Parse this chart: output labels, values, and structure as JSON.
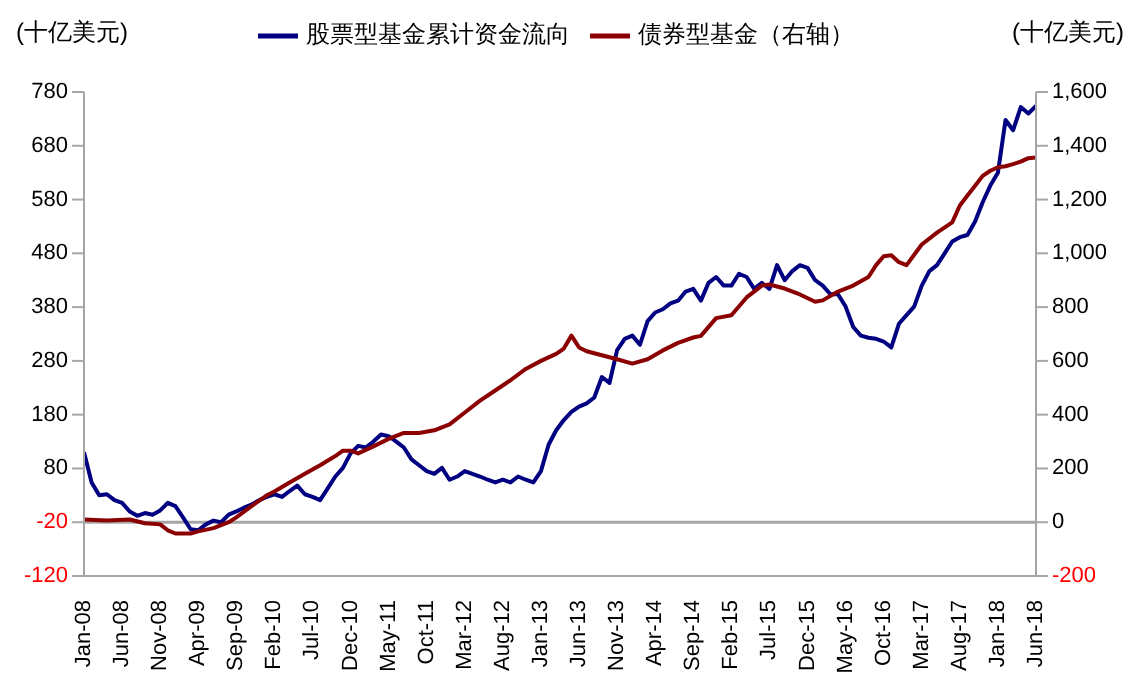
{
  "chart_data": {
    "type": "line",
    "ylabel": "(十亿美元)",
    "y2label": "(十亿美元)",
    "xlim": [
      "2008-01",
      "2018-06"
    ],
    "xticks": [
      {
        "value": "2008-01",
        "label": "Jan-08"
      },
      {
        "value": "2008-06",
        "label": "Jun-08"
      },
      {
        "value": "2008-11",
        "label": "Nov-08"
      },
      {
        "value": "2009-04",
        "label": "Apr-09"
      },
      {
        "value": "2009-09",
        "label": "Sep-09"
      },
      {
        "value": "2010-02",
        "label": "Feb-10"
      },
      {
        "value": "2010-07",
        "label": "Jul-10"
      },
      {
        "value": "2010-12",
        "label": "Dec-10"
      },
      {
        "value": "2011-05",
        "label": "May-11"
      },
      {
        "value": "2011-10",
        "label": "Oct-11"
      },
      {
        "value": "2012-03",
        "label": "Mar-12"
      },
      {
        "value": "2012-08",
        "label": "Aug-12"
      },
      {
        "value": "2013-01",
        "label": "Jan-13"
      },
      {
        "value": "2013-06",
        "label": "Jun-13"
      },
      {
        "value": "2013-11",
        "label": "Nov-13"
      },
      {
        "value": "2014-04",
        "label": "Apr-14"
      },
      {
        "value": "2014-09",
        "label": "Sep-14"
      },
      {
        "value": "2015-02",
        "label": "Feb-15"
      },
      {
        "value": "2015-07",
        "label": "Jul-15"
      },
      {
        "value": "2015-12",
        "label": "Dec-15"
      },
      {
        "value": "2016-05",
        "label": "May-16"
      },
      {
        "value": "2016-10",
        "label": "Oct-16"
      },
      {
        "value": "2017-03",
        "label": "Mar-17"
      },
      {
        "value": "2017-08",
        "label": "Aug-17"
      },
      {
        "value": "2018-01",
        "label": "Jan-18"
      },
      {
        "value": "2018-06",
        "label": "Jun-18"
      }
    ],
    "ylim": [
      -120,
      780
    ],
    "yticks": [
      -120,
      -20,
      80,
      180,
      280,
      380,
      480,
      580,
      680,
      780
    ],
    "y2lim": [
      -200,
      1600
    ],
    "y2ticks": [
      {
        "value": -200,
        "label": "-200"
      },
      0,
      200,
      400,
      600,
      800,
      {
        "value": 1000,
        "label": "1,000"
      },
      {
        "value": 1200,
        "label": "1,200"
      },
      {
        "value": 1400,
        "label": "1,400"
      },
      {
        "value": 1600,
        "label": "1,600"
      }
    ],
    "ref_lines": [
      {
        "axis": "y2",
        "value": 0,
        "color": "#a6a6a6"
      }
    ],
    "legend": "top",
    "marker": "none",
    "line_style": "solid",
    "series": [
      {
        "name": "股票型基金累计资金流向",
        "color": "#000080",
        "x": [
          "2008-01",
          "2008-02",
          "2008-03",
          "2008-04",
          "2008-05",
          "2008-06",
          "2008-07",
          "2008-08",
          "2008-09",
          "2008-10",
          "2008-11",
          "2008-12",
          "2009-01",
          "2009-02",
          "2009-03",
          "2009-04",
          "2009-05",
          "2009-06",
          "2009-07",
          "2009-08",
          "2009-09",
          "2009-10",
          "2009-11",
          "2009-12",
          "2010-01",
          "2010-02",
          "2010-03",
          "2010-04",
          "2010-05",
          "2010-06",
          "2010-07",
          "2010-08",
          "2010-09",
          "2010-10",
          "2010-11",
          "2010-12",
          "2011-01",
          "2011-02",
          "2011-03",
          "2011-04",
          "2011-05",
          "2011-06",
          "2011-07",
          "2011-08",
          "2011-09",
          "2011-10",
          "2011-11",
          "2011-12",
          "2012-01",
          "2012-02",
          "2012-03",
          "2012-04",
          "2012-05",
          "2012-06",
          "2012-07",
          "2012-08",
          "2012-09",
          "2012-10",
          "2012-11",
          "2012-12",
          "2013-01",
          "2013-02",
          "2013-03",
          "2013-04",
          "2013-05",
          "2013-06",
          "2013-07",
          "2013-08",
          "2013-09",
          "2013-10",
          "2013-11",
          "2013-12",
          "2014-01",
          "2014-02",
          "2014-03",
          "2014-04",
          "2014-05",
          "2014-06",
          "2014-07",
          "2014-08",
          "2014-09",
          "2014-10",
          "2014-11",
          "2014-12",
          "2015-01",
          "2015-02",
          "2015-03",
          "2015-04",
          "2015-05",
          "2015-06",
          "2015-07",
          "2015-08",
          "2015-09",
          "2015-10",
          "2015-11",
          "2015-12",
          "2016-01",
          "2016-02",
          "2016-03",
          "2016-04",
          "2016-05",
          "2016-06",
          "2016-07",
          "2016-08",
          "2016-09",
          "2016-10",
          "2016-11",
          "2016-12",
          "2017-01",
          "2017-02",
          "2017-03",
          "2017-04",
          "2017-05",
          "2017-06",
          "2017-07",
          "2017-08",
          "2017-09",
          "2017-10",
          "2017-11",
          "2017-12",
          "2018-01",
          "2018-02",
          "2018-03",
          "2018-04",
          "2018-05",
          "2018-06"
        ],
        "values": [
          110,
          54,
          30,
          32,
          21,
          16,
          0,
          -8,
          -3,
          -6,
          2,
          16,
          10,
          -11,
          -33,
          -35,
          -24,
          -17,
          -20,
          -6,
          0,
          7,
          13,
          21,
          27,
          32,
          27,
          38,
          48,
          32,
          27,
          21,
          43,
          65,
          81,
          108,
          122,
          119,
          130,
          143,
          140,
          130,
          119,
          97,
          86,
          75,
          70,
          81,
          59,
          65,
          75,
          70,
          65,
          59,
          54,
          59,
          54,
          65,
          59,
          54,
          75,
          124,
          151,
          170,
          185,
          195,
          201,
          212,
          250,
          239,
          300,
          321,
          327,
          310,
          354,
          370,
          376,
          387,
          392,
          409,
          414,
          392,
          425,
          436,
          420,
          420,
          442,
          436,
          414,
          425,
          414,
          458,
          430,
          447,
          458,
          453,
          430,
          420,
          404,
          404,
          381,
          343,
          327,
          323,
          321,
          316,
          305,
          349,
          365,
          381,
          420,
          447,
          458,
          480,
          502,
          510,
          514,
          539,
          575,
          606,
          630,
          728,
          709,
          752,
          740,
          754
        ]
      },
      {
        "name": "债券型基金（右轴）",
        "color": "#8b0000",
        "axis": "y2",
        "x": [
          "2008-01",
          "2008-04",
          "2008-07",
          "2008-09",
          "2008-11",
          "2008-12",
          "2009-01",
          "2009-03",
          "2009-04",
          "2009-06",
          "2009-08",
          "2009-09",
          "2009-11",
          "2010-01",
          "2010-02",
          "2010-04",
          "2010-06",
          "2010-08",
          "2010-10",
          "2010-11",
          "2010-12",
          "2011-01",
          "2011-03",
          "2011-05",
          "2011-07",
          "2011-09",
          "2011-11",
          "2012-01",
          "2012-03",
          "2012-05",
          "2012-07",
          "2012-09",
          "2012-11",
          "2013-01",
          "2013-03",
          "2013-04",
          "2013-05",
          "2013-06",
          "2013-07",
          "2013-09",
          "2013-11",
          "2014-01",
          "2014-03",
          "2014-05",
          "2014-07",
          "2014-09",
          "2014-10",
          "2014-12",
          "2015-02",
          "2015-04",
          "2015-06",
          "2015-07",
          "2015-09",
          "2015-11",
          "2016-01",
          "2016-02",
          "2016-04",
          "2016-06",
          "2016-08",
          "2016-09",
          "2016-10",
          "2016-11",
          "2016-12",
          "2017-01",
          "2017-03",
          "2017-05",
          "2017-07",
          "2017-08",
          "2017-09",
          "2017-10",
          "2017-11",
          "2017-12",
          "2018-01",
          "2018-02",
          "2018-03",
          "2018-04",
          "2018-05",
          "2018-06"
        ],
        "values": [
          10,
          6,
          10,
          -4,
          -8,
          -30,
          -42,
          -42,
          -34,
          -22,
          0,
          18,
          60,
          100,
          114,
          148,
          180,
          212,
          246,
          266,
          266,
          256,
          282,
          310,
          332,
          332,
          342,
          364,
          408,
          452,
          490,
          528,
          570,
          600,
          626,
          646,
          694,
          650,
          636,
          621,
          606,
          590,
          606,
          639,
          667,
          687,
          693,
          759,
          770,
          836,
          880,
          884,
          869,
          847,
          820,
          825,
          858,
          880,
          912,
          956,
          989,
          993,
          967,
          956,
          1033,
          1077,
          1115,
          1178,
          1215,
          1251,
          1288,
          1307,
          1320,
          1324,
          1332,
          1341,
          1354,
          1356
        ]
      }
    ]
  }
}
